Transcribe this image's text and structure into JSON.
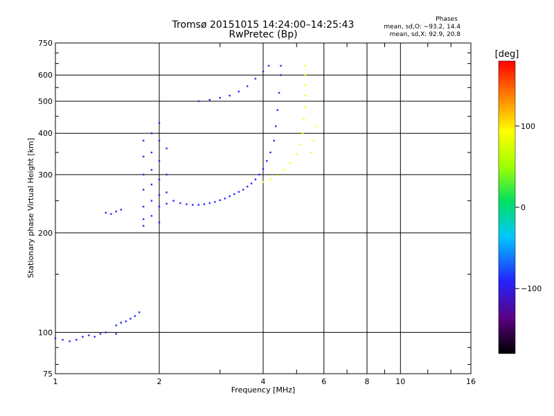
{
  "chart_data": {
    "type": "scatter",
    "title": "Tromsø 20151015 14:24:00–14:25:43",
    "subtitle": "RwPretec (Bp)",
    "xlabel": "Frequency [MHz]",
    "ylabel": "Stationary phase Virtual Height [km]",
    "x_scale": "log",
    "y_scale": "log",
    "xlim": [
      1,
      16
    ],
    "ylim": [
      75,
      750
    ],
    "x_ticks": [
      "1",
      "2",
      "4",
      "6",
      "8",
      "10",
      "16"
    ],
    "x_tick_values": [
      1,
      2,
      4,
      6,
      8,
      10,
      16
    ],
    "y_ticks": [
      "75",
      "100",
      "200",
      "300",
      "400",
      "500",
      "600",
      "750"
    ],
    "y_tick_values": [
      75,
      100,
      200,
      300,
      400,
      500,
      600,
      750
    ],
    "grid": true,
    "phase_box": {
      "title": "Phases",
      "line_o": "mean, sd,O: −93.2, 14.4",
      "line_x": "mean, sd,X:  92.9, 20.8"
    },
    "colorbar": {
      "label": "[deg]",
      "ticks": [
        "100",
        "0",
        "−100"
      ],
      "tick_values": [
        100,
        0,
        -100
      ],
      "range": [
        -180,
        180
      ]
    },
    "series": [
      {
        "trace": "O-mode",
        "phase_mean": -93.2,
        "points": [
          [
            1.0,
            96
          ],
          [
            1.05,
            95
          ],
          [
            1.1,
            94
          ],
          [
            1.15,
            95
          ],
          [
            1.2,
            97
          ],
          [
            1.25,
            98
          ],
          [
            1.3,
            97
          ],
          [
            1.35,
            99
          ],
          [
            1.4,
            100
          ],
          [
            1.5,
            99
          ],
          [
            1.4,
            230
          ],
          [
            1.45,
            228
          ],
          [
            1.5,
            232
          ],
          [
            1.55,
            235
          ],
          [
            1.5,
            105
          ],
          [
            1.55,
            107
          ],
          [
            1.6,
            108
          ],
          [
            1.65,
            110
          ],
          [
            1.7,
            112
          ],
          [
            1.75,
            115
          ],
          [
            1.8,
            380
          ],
          [
            1.8,
            340
          ],
          [
            1.8,
            300
          ],
          [
            1.8,
            270
          ],
          [
            1.8,
            240
          ],
          [
            1.8,
            220
          ],
          [
            1.8,
            210
          ],
          [
            1.9,
            400
          ],
          [
            1.9,
            350
          ],
          [
            1.9,
            310
          ],
          [
            1.9,
            280
          ],
          [
            1.9,
            250
          ],
          [
            1.9,
            225
          ],
          [
            2.0,
            430
          ],
          [
            2.0,
            380
          ],
          [
            2.0,
            330
          ],
          [
            2.0,
            290
          ],
          [
            2.0,
            260
          ],
          [
            2.0,
            240
          ],
          [
            2.0,
            215
          ],
          [
            2.1,
            360
          ],
          [
            2.1,
            300
          ],
          [
            2.1,
            265
          ],
          [
            2.1,
            245
          ],
          [
            2.2,
            250
          ],
          [
            2.3,
            246
          ],
          [
            2.4,
            244
          ],
          [
            2.5,
            243
          ],
          [
            2.6,
            243
          ],
          [
            2.7,
            244
          ],
          [
            2.8,
            246
          ],
          [
            2.9,
            248
          ],
          [
            3.0,
            251
          ],
          [
            3.1,
            254
          ],
          [
            3.2,
            258
          ],
          [
            3.3,
            262
          ],
          [
            3.4,
            266
          ],
          [
            3.5,
            270
          ],
          [
            3.6,
            276
          ],
          [
            3.7,
            282
          ],
          [
            3.8,
            290
          ],
          [
            3.9,
            300
          ],
          [
            4.0,
            312
          ],
          [
            4.1,
            330
          ],
          [
            4.2,
            350
          ],
          [
            4.3,
            380
          ],
          [
            4.35,
            420
          ],
          [
            4.4,
            470
          ],
          [
            4.45,
            530
          ],
          [
            4.5,
            600
          ],
          [
            4.5,
            640
          ],
          [
            2.6,
            500
          ],
          [
            2.8,
            505
          ],
          [
            3.0,
            512
          ],
          [
            3.2,
            520
          ],
          [
            3.4,
            535
          ],
          [
            3.6,
            555
          ],
          [
            3.8,
            585
          ],
          [
            4.0,
            615
          ],
          [
            4.15,
            640
          ]
        ]
      },
      {
        "trace": "X-mode",
        "phase_mean": 92.9,
        "points": [
          [
            4.0,
            285
          ],
          [
            4.2,
            290
          ],
          [
            4.4,
            298
          ],
          [
            4.6,
            310
          ],
          [
            4.8,
            325
          ],
          [
            5.0,
            345
          ],
          [
            5.1,
            370
          ],
          [
            5.2,
            400
          ],
          [
            5.25,
            440
          ],
          [
            5.3,
            480
          ],
          [
            5.3,
            520
          ],
          [
            5.3,
            560
          ],
          [
            5.3,
            600
          ],
          [
            5.3,
            640
          ],
          [
            5.5,
            350
          ],
          [
            5.6,
            380
          ],
          [
            5.7,
            420
          ]
        ]
      }
    ]
  }
}
